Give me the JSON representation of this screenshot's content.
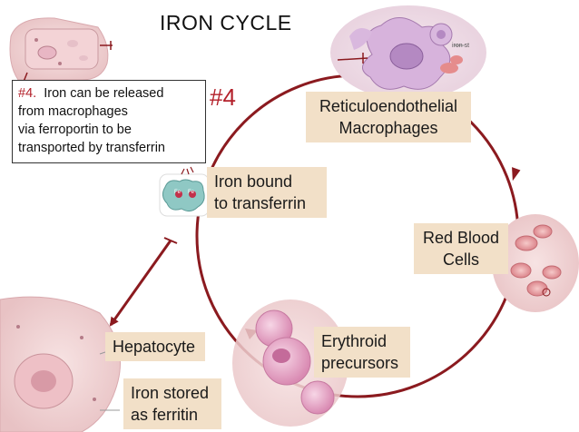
{
  "title": "IRON CYCLE",
  "step_marker": "#4",
  "note": {
    "number": "#4.",
    "lines": [
      "Iron can be released",
      "from macrophages",
      "via ferroportin to be",
      "transported by transferrin"
    ]
  },
  "labels": {
    "macrophages": [
      "Reticuloendothelial",
      "Macrophages"
    ],
    "transferrin": [
      "Iron bound",
      "to transferrin"
    ],
    "rbc": [
      "Red Blood",
      "Cells"
    ],
    "erythroid": [
      "Erythroid",
      "precursors"
    ],
    "hepatocyte": "Hepatocyte",
    "ferritin": [
      "Iron stored",
      "as ferritin"
    ]
  },
  "small_text": {
    "iron_store_fragment": "iron st",
    "fe_symbol": "Fe"
  },
  "colors": {
    "arrow": "#8b1a1f",
    "label_bg": "#f2e0c8",
    "accent_text": "#b3202a"
  }
}
